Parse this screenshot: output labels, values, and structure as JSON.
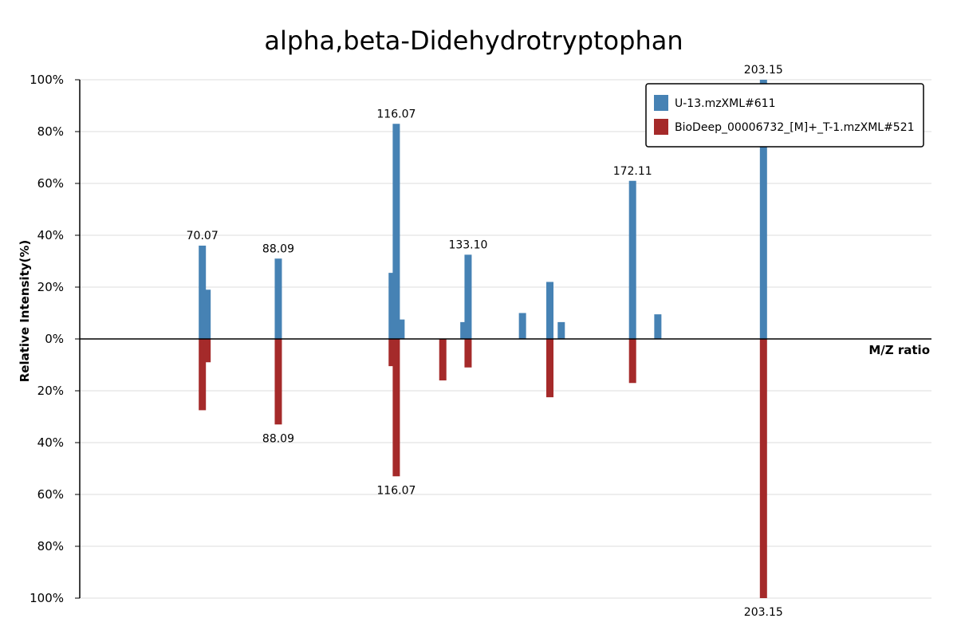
{
  "chart_data": {
    "type": "bar",
    "title": "alpha,beta-Didehydrotryptophan",
    "xlabel": "M/Z ratio",
    "ylabel": "Relative Intensity(%)",
    "xlim": [
      41,
      243
    ],
    "ylim": [
      -100,
      100
    ],
    "yticks": [
      100,
      80,
      60,
      40,
      20,
      0,
      20,
      40,
      60,
      80,
      100
    ],
    "tick_suffix": "%",
    "grid": true,
    "legend_position": "top-right",
    "colors": {
      "top": "#4682b4",
      "bottom": "#a52a2a"
    },
    "series": [
      {
        "name": "U-13.mzXML#611",
        "direction": "up",
        "mz": [
          70.07,
          71.2,
          88.09,
          115.1,
          116.07,
          117.2,
          132.1,
          133.1,
          146.0,
          152.5,
          155.2,
          172.11,
          178.1,
          203.15
        ],
        "intensity": [
          36,
          19,
          31,
          25.5,
          83,
          7.5,
          6.5,
          32.5,
          10,
          22,
          6.5,
          61,
          9.5,
          100
        ],
        "labels": [
          {
            "mz": 70.07,
            "text": "70.07"
          },
          {
            "mz": 88.09,
            "text": "88.09"
          },
          {
            "mz": 116.07,
            "text": "116.07"
          },
          {
            "mz": 133.1,
            "text": "133.10"
          },
          {
            "mz": 172.11,
            "text": "172.11"
          },
          {
            "mz": 203.15,
            "text": "203.15"
          }
        ]
      },
      {
        "name": "BioDeep_00006732_[M]+_T-1.mzXML#521",
        "direction": "down",
        "mz": [
          70.07,
          71.2,
          88.09,
          115.1,
          116.07,
          127.1,
          133.1,
          152.5,
          172.11,
          203.15
        ],
        "intensity": [
          27.5,
          9,
          33,
          10.5,
          53,
          16,
          11,
          22.5,
          17,
          100
        ],
        "labels": [
          {
            "mz": 88.09,
            "text": "88.09"
          },
          {
            "mz": 116.07,
            "text": "116.07"
          },
          {
            "mz": 203.15,
            "text": "203.15"
          }
        ]
      }
    ]
  }
}
